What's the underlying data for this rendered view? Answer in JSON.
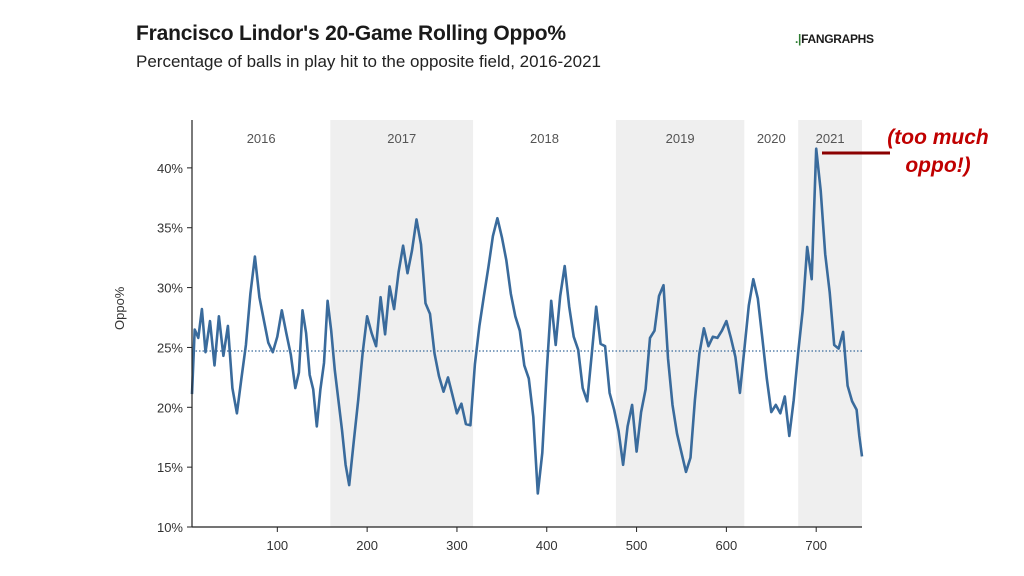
{
  "header": {
    "title": "Francisco Lindor's 20-Game Rolling Oppo%",
    "subtitle": "Percentage of balls in play hit to the opposite field, 2016-2021",
    "logo_text": "FANGRAPHS"
  },
  "annotation": "(too much oppo!)",
  "colors": {
    "line": "#3a6b9c",
    "band": "#efefef",
    "reference": "#3a6b9c",
    "annotation": "#c00000"
  },
  "chart_data": {
    "type": "line",
    "title": "Francisco Lindor's 20-Game Rolling Oppo%",
    "subtitle": "Percentage of balls in play hit to the opposite field, 2016-2021",
    "xlabel": "",
    "ylabel": "Oppo%",
    "xlim": [
      5,
      751
    ],
    "ylim": [
      10,
      44
    ],
    "x_ticks": [
      100,
      200,
      300,
      400,
      500,
      600,
      700
    ],
    "y_ticks": [
      10,
      15,
      20,
      25,
      30,
      35,
      40
    ],
    "y_tick_labels": [
      "10%",
      "15%",
      "20%",
      "25%",
      "30%",
      "35%",
      "40%"
    ],
    "reference_line": {
      "y": 24.7,
      "style": "dotted"
    },
    "seasons": [
      {
        "label": "2016",
        "start": 5,
        "end": 159,
        "shaded": false
      },
      {
        "label": "2017",
        "start": 159,
        "end": 318,
        "shaded": true
      },
      {
        "label": "2018",
        "start": 318,
        "end": 477,
        "shaded": false
      },
      {
        "label": "2019",
        "start": 477,
        "end": 620,
        "shaded": true
      },
      {
        "label": "2020",
        "start": 620,
        "end": 680,
        "shaded": false
      },
      {
        "label": "2021",
        "start": 680,
        "end": 751,
        "shaded": true
      }
    ],
    "series": [
      {
        "points": [
          [
            5,
            21.1
          ],
          [
            8,
            26.5
          ],
          [
            12,
            25.8
          ],
          [
            16,
            28.2
          ],
          [
            20,
            24.6
          ],
          [
            25,
            27.2
          ],
          [
            30,
            23.5
          ],
          [
            35,
            27.6
          ],
          [
            40,
            24.3
          ],
          [
            45,
            26.8
          ],
          [
            50,
            21.6
          ],
          [
            55,
            19.5
          ],
          [
            60,
            22.4
          ],
          [
            65,
            25.2
          ],
          [
            70,
            29.5
          ],
          [
            75,
            32.6
          ],
          [
            80,
            29.2
          ],
          [
            85,
            27.3
          ],
          [
            90,
            25.4
          ],
          [
            95,
            24.6
          ],
          [
            100,
            25.9
          ],
          [
            105,
            28.1
          ],
          [
            110,
            26.2
          ],
          [
            115,
            24.4
          ],
          [
            120,
            21.6
          ],
          [
            124,
            22.9
          ],
          [
            128,
            28.1
          ],
          [
            132,
            26.2
          ],
          [
            136,
            22.7
          ],
          [
            140,
            21.5
          ],
          [
            144,
            18.4
          ],
          [
            148,
            21.5
          ],
          [
            152,
            23.7
          ],
          [
            156,
            28.9
          ],
          [
            160,
            26.4
          ],
          [
            164,
            23.1
          ],
          [
            168,
            20.6
          ],
          [
            172,
            18.1
          ],
          [
            176,
            15.2
          ],
          [
            180,
            13.5
          ],
          [
            185,
            17.1
          ],
          [
            190,
            20.6
          ],
          [
            195,
            24.5
          ],
          [
            200,
            27.6
          ],
          [
            205,
            26.2
          ],
          [
            210,
            25.1
          ],
          [
            215,
            29.2
          ],
          [
            220,
            26.1
          ],
          [
            225,
            30.1
          ],
          [
            230,
            28.2
          ],
          [
            235,
            31.3
          ],
          [
            240,
            33.5
          ],
          [
            245,
            31.2
          ],
          [
            250,
            33.1
          ],
          [
            255,
            35.7
          ],
          [
            260,
            33.6
          ],
          [
            265,
            28.7
          ],
          [
            270,
            27.8
          ],
          [
            275,
            24.5
          ],
          [
            280,
            22.6
          ],
          [
            285,
            21.3
          ],
          [
            290,
            22.5
          ],
          [
            295,
            21.0
          ],
          [
            300,
            19.5
          ],
          [
            305,
            20.3
          ],
          [
            310,
            18.6
          ],
          [
            315,
            18.5
          ],
          [
            320,
            23.6
          ],
          [
            325,
            26.8
          ],
          [
            330,
            29.3
          ],
          [
            335,
            31.7
          ],
          [
            340,
            34.3
          ],
          [
            345,
            35.8
          ],
          [
            350,
            34.2
          ],
          [
            355,
            32.3
          ],
          [
            360,
            29.5
          ],
          [
            365,
            27.6
          ],
          [
            370,
            26.4
          ],
          [
            375,
            23.5
          ],
          [
            380,
            22.4
          ],
          [
            385,
            19.2
          ],
          [
            390,
            12.8
          ],
          [
            395,
            16.2
          ],
          [
            400,
            23.1
          ],
          [
            405,
            28.9
          ],
          [
            410,
            25.2
          ],
          [
            415,
            29.3
          ],
          [
            420,
            31.8
          ],
          [
            425,
            28.4
          ],
          [
            430,
            25.9
          ],
          [
            435,
            24.8
          ],
          [
            440,
            21.6
          ],
          [
            445,
            20.5
          ],
          [
            450,
            24.4
          ],
          [
            455,
            28.4
          ],
          [
            460,
            25.3
          ],
          [
            465,
            25.1
          ],
          [
            470,
            21.2
          ],
          [
            475,
            19.8
          ],
          [
            480,
            18.0
          ],
          [
            485,
            15.2
          ],
          [
            490,
            18.4
          ],
          [
            495,
            20.2
          ],
          [
            500,
            16.3
          ],
          [
            505,
            19.6
          ],
          [
            510,
            21.5
          ],
          [
            515,
            25.8
          ],
          [
            520,
            26.4
          ],
          [
            525,
            29.3
          ],
          [
            530,
            30.2
          ],
          [
            535,
            24.1
          ],
          [
            540,
            20.2
          ],
          [
            545,
            17.8
          ],
          [
            550,
            16.2
          ],
          [
            555,
            14.6
          ],
          [
            560,
            15.8
          ],
          [
            565,
            20.6
          ],
          [
            570,
            24.5
          ],
          [
            575,
            26.6
          ],
          [
            580,
            25.1
          ],
          [
            585,
            25.9
          ],
          [
            590,
            25.8
          ],
          [
            595,
            26.4
          ],
          [
            600,
            27.2
          ],
          [
            605,
            25.8
          ],
          [
            610,
            24.2
          ],
          [
            615,
            21.2
          ],
          [
            620,
            24.8
          ],
          [
            625,
            28.5
          ],
          [
            630,
            30.7
          ],
          [
            635,
            29.1
          ],
          [
            640,
            25.8
          ],
          [
            645,
            22.4
          ],
          [
            650,
            19.6
          ],
          [
            655,
            20.2
          ],
          [
            660,
            19.5
          ],
          [
            665,
            20.9
          ],
          [
            670,
            17.6
          ],
          [
            675,
            20.6
          ],
          [
            680,
            24.6
          ],
          [
            685,
            28.1
          ],
          [
            690,
            33.4
          ],
          [
            695,
            30.7
          ],
          [
            700,
            41.6
          ],
          [
            705,
            38.1
          ],
          [
            710,
            32.8
          ],
          [
            715,
            29.6
          ],
          [
            720,
            25.2
          ],
          [
            725,
            24.9
          ],
          [
            730,
            26.3
          ],
          [
            735,
            21.8
          ],
          [
            740,
            20.5
          ],
          [
            745,
            19.8
          ],
          [
            748,
            17.6
          ],
          [
            751,
            15.9
          ]
        ]
      }
    ],
    "grid": false,
    "legend": "none"
  }
}
